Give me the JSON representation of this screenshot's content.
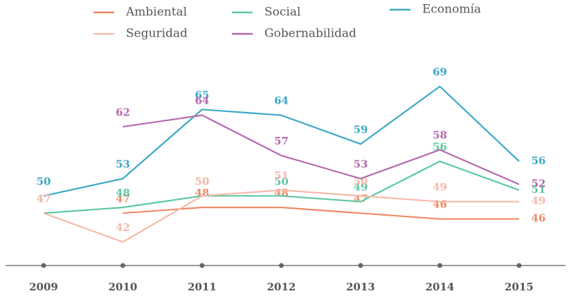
{
  "chart_data": {
    "type": "line",
    "categories": [
      "2009",
      "2010",
      "2011",
      "2012",
      "2013",
      "2014",
      "2015"
    ],
    "series": [
      {
        "name": "Ambiental",
        "color": "#ef8a67",
        "values": [
          null,
          47,
          48,
          48,
          47,
          46,
          46
        ]
      },
      {
        "name": "Social",
        "color": "#5cc7a2",
        "values": [
          47,
          48,
          50,
          50,
          49,
          56,
          51
        ]
      },
      {
        "name": "Economía",
        "color": "#3ba8c6",
        "values": [
          50,
          53,
          65,
          64,
          59,
          69,
          56
        ]
      },
      {
        "name": "Seguridad",
        "color": "#f6b9a9",
        "values": [
          47,
          42,
          50,
          51,
          50,
          49,
          49
        ]
      },
      {
        "name": "Gobernabilidad",
        "color": "#b468ad",
        "values": [
          null,
          62,
          64,
          57,
          53,
          58,
          52
        ]
      }
    ]
  }
}
